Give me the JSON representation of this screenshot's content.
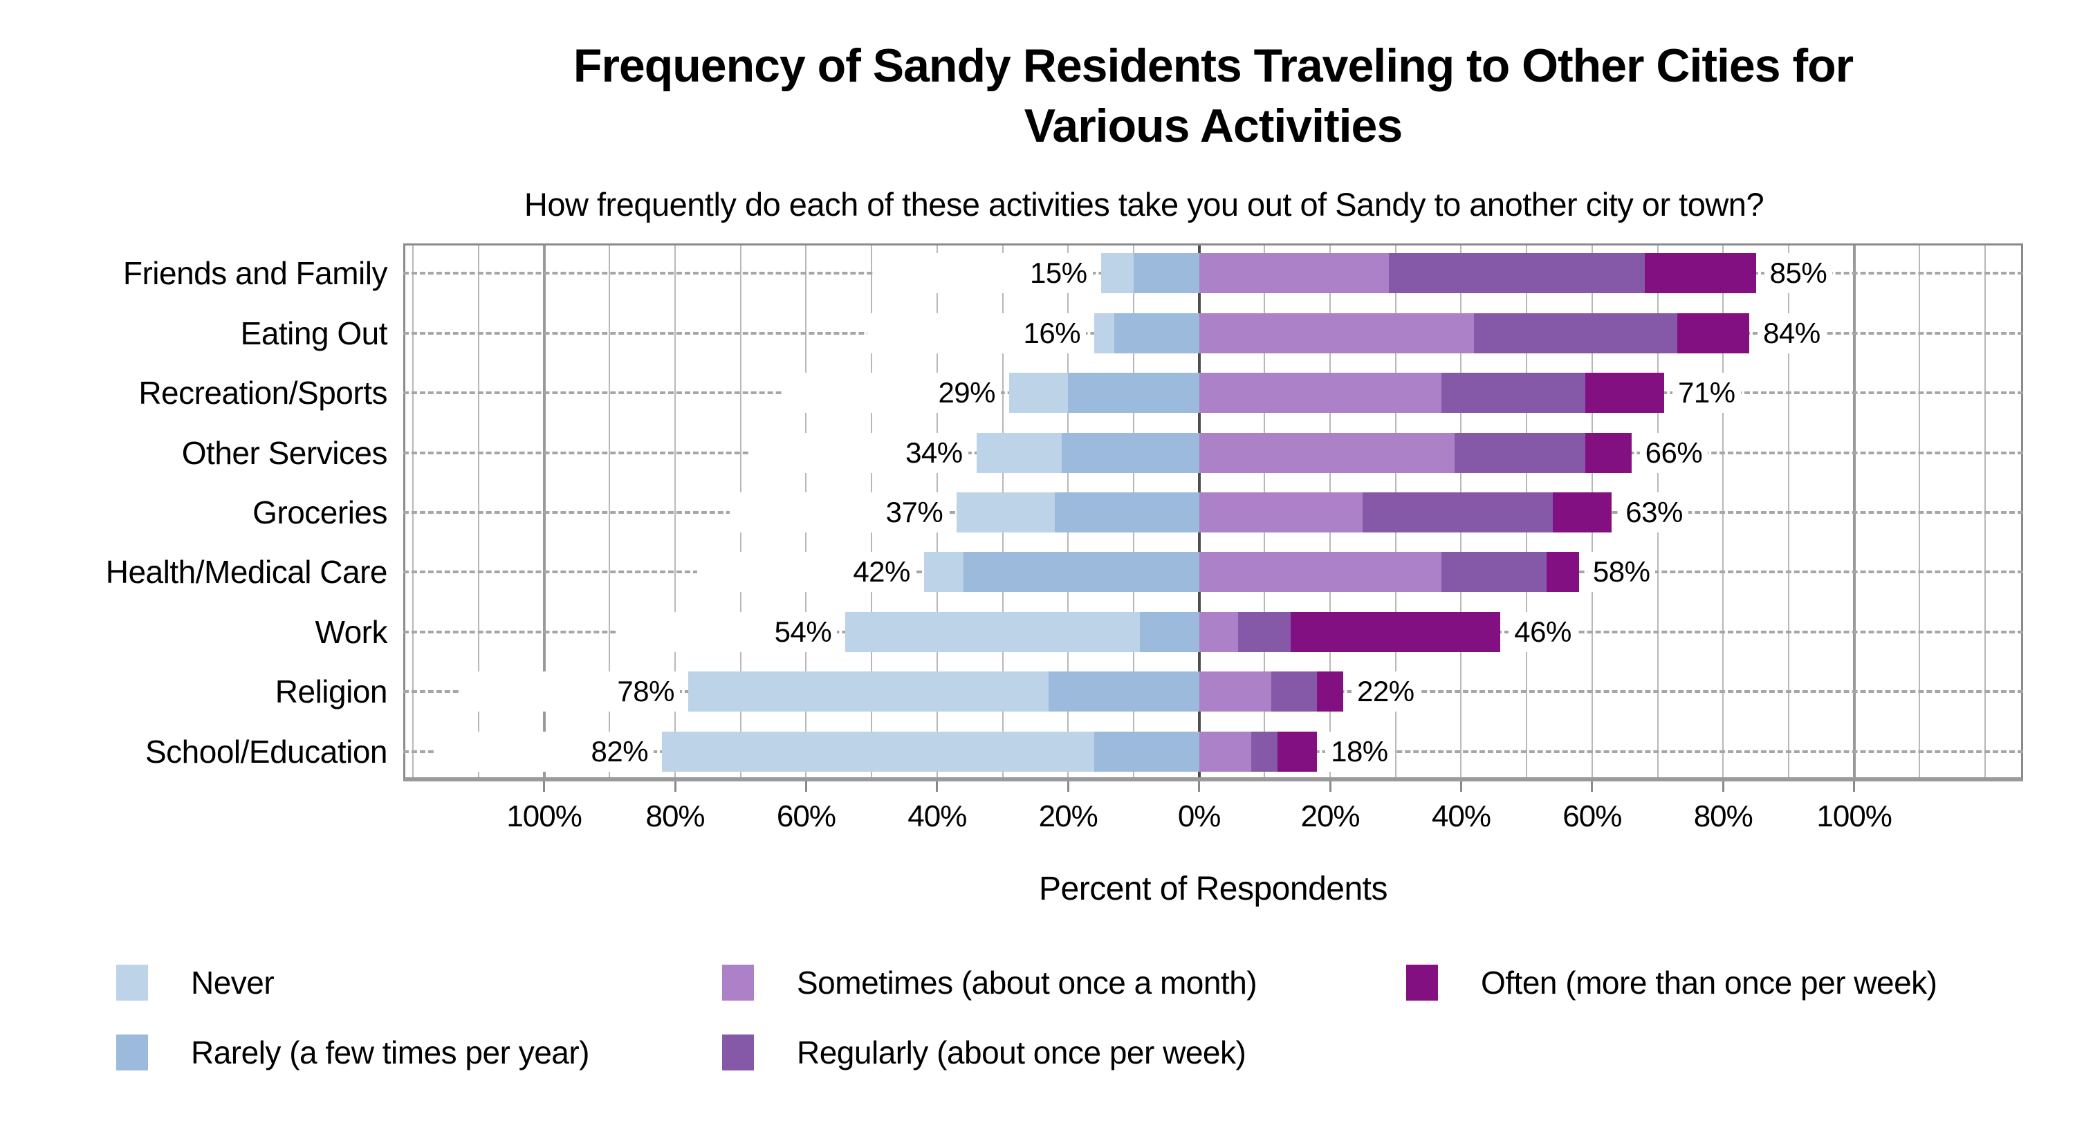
{
  "title": "Frequency of Sandy Residents Traveling to Other Cities for Various Activities",
  "title_lines": [
    "Frequency of Sandy Residents Traveling to Other Cities for",
    "Various Activities"
  ],
  "subtitle": "How frequently do each of these activities take you out of Sandy to another city or town?",
  "chart_data": {
    "type": "bar",
    "variant": "diverging-stacked-horizontal",
    "title": "Frequency of Sandy Residents Traveling to Other Cities for Various Activities",
    "subtitle": "How frequently do each of these activities take you out of Sandy to another city or town?",
    "xlabel": "Percent of Respondents",
    "ylabel": "",
    "grid": true,
    "legend_position": "bottom",
    "x_tick_labels": [
      "100%",
      "80%",
      "60%",
      "40%",
      "20%",
      "0%",
      "20%",
      "40%",
      "60%",
      "80%",
      "100%"
    ],
    "x_tick_values": [
      -100,
      -80,
      -60,
      -40,
      -20,
      0,
      20,
      40,
      60,
      80,
      100
    ],
    "xlim": [
      -121.5,
      125.8
    ],
    "grid_step": 10,
    "categories": [
      "Friends and Family",
      "Eating Out",
      "Recreation/Sports",
      "Other Services",
      "Groceries",
      "Health/Medical Care",
      "Work",
      "Religion",
      "School/Education"
    ],
    "left_side_series": [
      "Never",
      "Rarely (a few times per year)"
    ],
    "right_side_series": [
      "Sometimes (about once a month)",
      "Regularly (about once per week)",
      "Often (more than once per week)"
    ],
    "series": [
      {
        "name": "Never",
        "color": "#BDD3E8",
        "values": [
          5,
          3,
          9,
          13,
          15,
          6,
          45,
          55,
          66
        ]
      },
      {
        "name": "Rarely (a few times per year)",
        "color": "#9CBADB",
        "values": [
          10,
          13,
          20,
          21,
          22,
          36,
          9,
          23,
          16
        ]
      },
      {
        "name": "Sometimes (about once a month)",
        "color": "#AC81C7",
        "values": [
          29,
          42,
          37,
          39,
          25,
          37,
          6,
          11,
          8
        ]
      },
      {
        "name": "Regularly (about once per week)",
        "color": "#8559A8",
        "values": [
          39,
          31,
          22,
          20,
          29,
          16,
          8,
          7,
          4
        ]
      },
      {
        "name": "Often (more than once per week)",
        "color": "#821080",
        "values": [
          17,
          11,
          12,
          7,
          9,
          5,
          32,
          4,
          6
        ]
      }
    ],
    "left_totals": [
      15,
      16,
      29,
      34,
      37,
      42,
      54,
      78,
      82
    ],
    "right_totals": [
      85,
      84,
      71,
      66,
      63,
      58,
      46,
      22,
      18
    ],
    "left_total_labels": [
      "15%",
      "16%",
      "29%",
      "34%",
      "37%",
      "42%",
      "54%",
      "78%",
      "82%"
    ],
    "right_total_labels": [
      "85%",
      "84%",
      "71%",
      "66%",
      "63%",
      "58%",
      "46%",
      "22%",
      "18%"
    ]
  },
  "legend": {
    "items": [
      {
        "label": "Never",
        "color": "#BDD3E8"
      },
      {
        "label": "Rarely (a few times per year)",
        "color": "#9CBADB"
      },
      {
        "label": "Sometimes (about once a month)",
        "color": "#AC81C7"
      },
      {
        "label": "Regularly (about once per week)",
        "color": "#8559A8"
      },
      {
        "label": "Often (more than once per week)",
        "color": "#821080"
      }
    ]
  },
  "colors": {
    "never": "#BDD3E8",
    "rarely": "#9CBADB",
    "sometimes": "#AC81C7",
    "regularly": "#8559A8",
    "often": "#821080",
    "gridline": "#b8b8b8",
    "zero_line": "#4d4d4d",
    "plot_border": "#8a8a8a",
    "row_guide": "#a6a6a6"
  }
}
